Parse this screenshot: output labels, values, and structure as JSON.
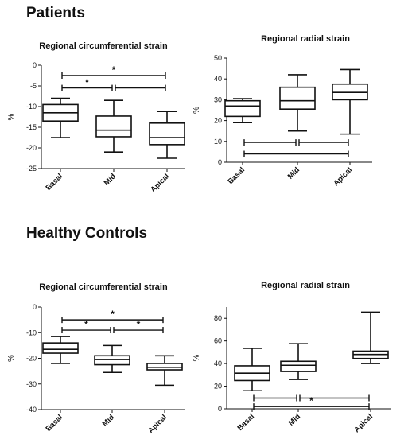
{
  "sections": {
    "patients": "Patients",
    "controls": "Healthy Controls"
  },
  "chart_data": [
    {
      "type": "box",
      "group": "Patients",
      "title": "Regional circumferential strain",
      "xlabel": "",
      "ylabel": "%",
      "ylim": [
        -25,
        0
      ],
      "yticks": [
        0,
        -5,
        -10,
        -15,
        -20,
        -25
      ],
      "categories": [
        "Basal",
        "Mid",
        "Apical"
      ],
      "boxes": [
        {
          "min": -17.5,
          "q1": -13.5,
          "median": -11.5,
          "q3": -9.5,
          "max": -8
        },
        {
          "min": -21,
          "q1": -17.3,
          "median": -15.7,
          "q3": -12.3,
          "max": -8.5
        },
        {
          "min": -22.5,
          "q1": -19.2,
          "median": -17.5,
          "q3": -14,
          "max": -11.2
        }
      ],
      "significance": [
        {
          "from": 0,
          "to": 2,
          "y": -2.5,
          "label": "*"
        },
        {
          "from": 0,
          "to": 1,
          "y": -5.5,
          "label": "*"
        },
        {
          "from": 1,
          "to": 2,
          "y": -5.5,
          "label": ""
        }
      ]
    },
    {
      "type": "box",
      "group": "Patients",
      "title": "Regional radial strain",
      "xlabel": "",
      "ylabel": "%",
      "ylim": [
        0,
        50
      ],
      "yticks": [
        0,
        10,
        20,
        30,
        40,
        50
      ],
      "categories": [
        "Basal",
        "Mid",
        "Apical"
      ],
      "boxes": [
        {
          "min": 19,
          "q1": 22,
          "median": 27,
          "q3": 29.5,
          "max": 30.5
        },
        {
          "min": 15,
          "q1": 25.5,
          "median": 29.5,
          "q3": 36,
          "max": 42
        },
        {
          "min": 13.5,
          "q1": 30,
          "median": 33.5,
          "q3": 37.5,
          "max": 44.5
        }
      ],
      "significance": [
        {
          "from": 0,
          "to": 1,
          "y": 9.5,
          "label": ""
        },
        {
          "from": 1,
          "to": 2,
          "y": 9.5,
          "label": ""
        },
        {
          "from": 0,
          "to": 2,
          "y": 4,
          "label": ""
        }
      ]
    },
    {
      "type": "box",
      "group": "Healthy Controls",
      "title": "Regional circumferential strain",
      "xlabel": "",
      "ylabel": "%",
      "ylim": [
        -40,
        0
      ],
      "yticks": [
        0,
        -10,
        -20,
        -30,
        -40
      ],
      "categories": [
        "Basal",
        "Mid",
        "Apical"
      ],
      "boxes": [
        {
          "min": -22,
          "q1": -18,
          "median": -16.5,
          "q3": -14,
          "max": -11.5
        },
        {
          "min": -25.5,
          "q1": -22.5,
          "median": -20.5,
          "q3": -19,
          "max": -15
        },
        {
          "min": -30.5,
          "q1": -24.5,
          "median": -23.5,
          "q3": -22,
          "max": -19
        }
      ],
      "significance": [
        {
          "from": 0,
          "to": 2,
          "y": -5,
          "label": "*"
        },
        {
          "from": 0,
          "to": 1,
          "y": -9,
          "label": "*"
        },
        {
          "from": 1,
          "to": 2,
          "y": -9,
          "label": "*"
        }
      ]
    },
    {
      "type": "box",
      "group": "Healthy Controls",
      "title": "Regional radial strain",
      "xlabel": "",
      "ylabel": "%",
      "ylim": [
        0,
        90
      ],
      "yticks": [
        0,
        20,
        40,
        60,
        80
      ],
      "categories": [
        "Basal",
        "Mid",
        "Apical"
      ],
      "boxes": [
        {
          "min": 16,
          "q1": 25,
          "median": 31.5,
          "q3": 38,
          "max": 53.5
        },
        {
          "min": 26,
          "q1": 33,
          "median": 38.5,
          "q3": 42,
          "max": 57.5
        },
        {
          "min": 40,
          "q1": 44.5,
          "median": 48,
          "q3": 51,
          "max": 85.5
        }
      ],
      "significance": [
        {
          "from": 0,
          "to": 1,
          "y": 9.5,
          "label": ""
        },
        {
          "from": 1,
          "to": 2,
          "y": 9.5,
          "label": ""
        },
        {
          "from": 0,
          "to": 2,
          "y": 2,
          "label": "*"
        }
      ]
    }
  ]
}
